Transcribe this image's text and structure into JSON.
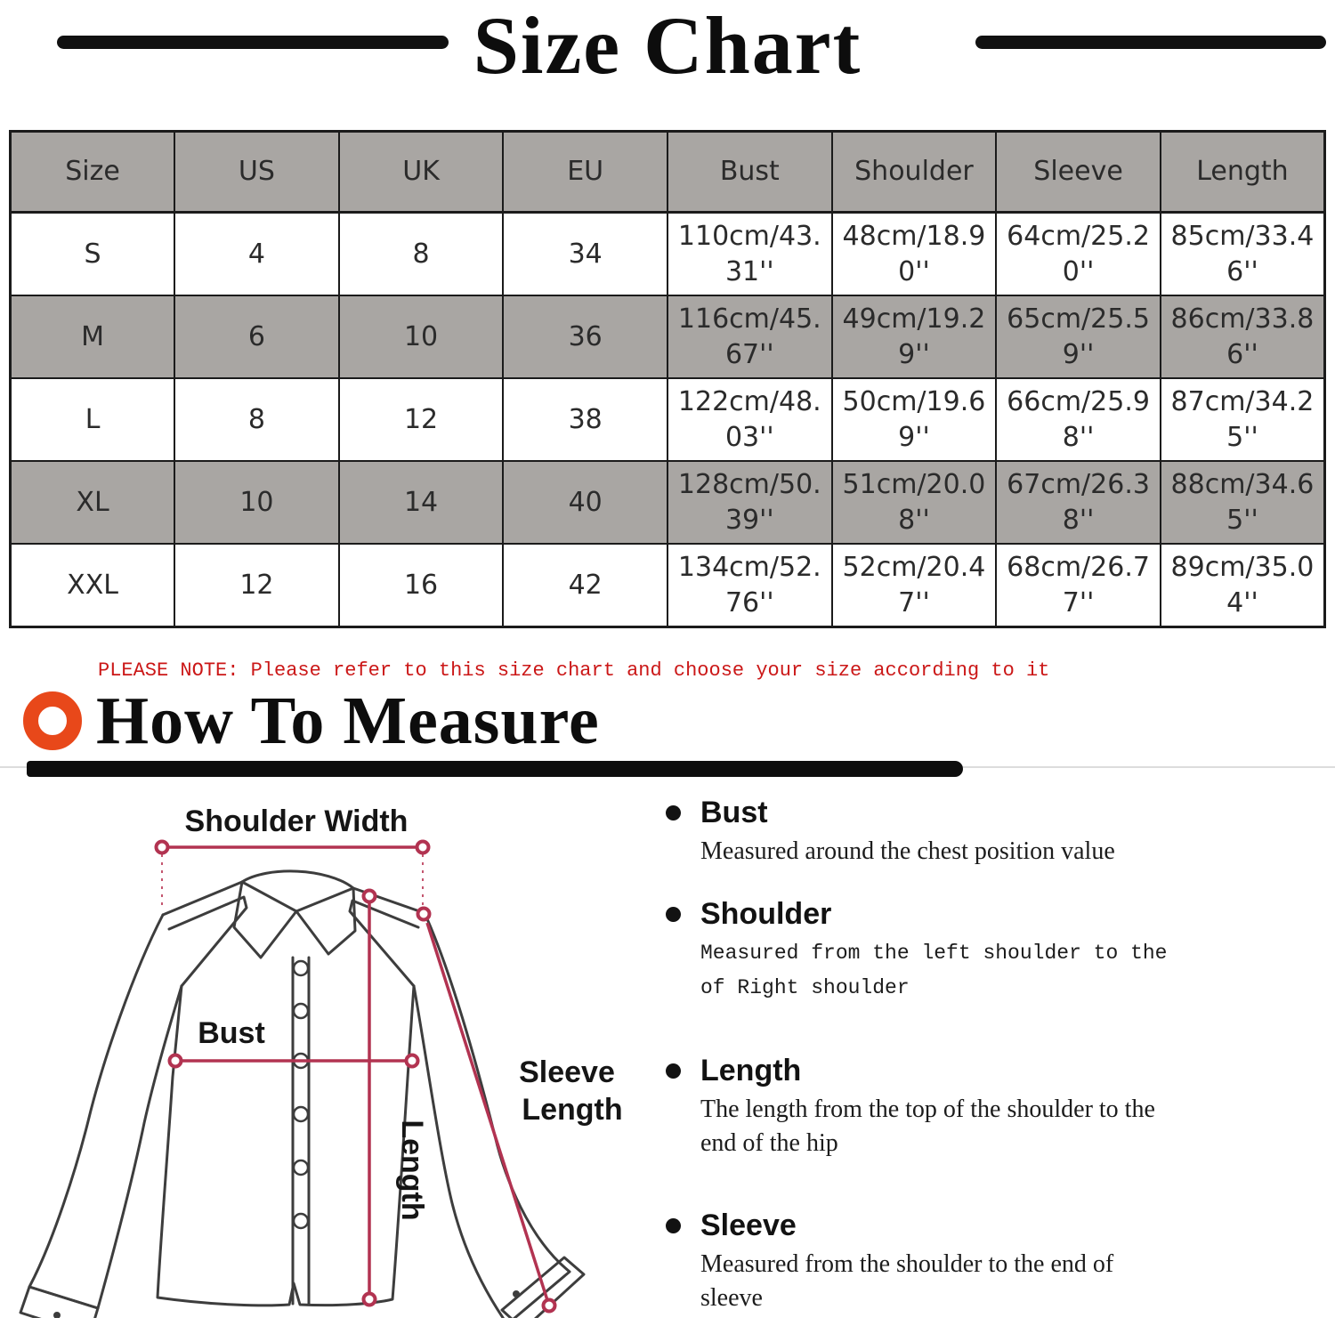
{
  "title": "Size Chart",
  "size_table": {
    "headers": [
      "Size",
      "US",
      "UK",
      "EU",
      "Bust",
      "Shoulder",
      "Sleeve",
      "Length"
    ],
    "rows": [
      {
        "cells": [
          "S",
          "4",
          "8",
          "34",
          "110cm/43.31''",
          "48cm/18.90''",
          "64cm/25.20''",
          "85cm/33.46''"
        ]
      },
      {
        "cells": [
          "M",
          "6",
          "10",
          "36",
          "116cm/45.67''",
          "49cm/19.29''",
          "65cm/25.59''",
          "86cm/33.86''"
        ]
      },
      {
        "cells": [
          "L",
          "8",
          "12",
          "38",
          "122cm/48.03''",
          "50cm/19.69''",
          "66cm/25.98''",
          "87cm/34.25''"
        ]
      },
      {
        "cells": [
          "XL",
          "10",
          "14",
          "40",
          "128cm/50.39''",
          "51cm/20.08''",
          "67cm/26.38''",
          "88cm/34.65''"
        ]
      },
      {
        "cells": [
          "XXL",
          "12",
          "16",
          "42",
          "134cm/52.76''",
          "52cm/20.47''",
          "68cm/26.77''",
          "89cm/35.04''"
        ]
      }
    ]
  },
  "note": "PLEASE NOTE: Please refer to this size chart and choose your size according to it",
  "how_to_measure": {
    "heading": "How To Measure",
    "items": [
      {
        "title": "Bust",
        "desc": "Measured around the chest position value"
      },
      {
        "title": "Shoulder",
        "desc": "Measured from the left shoulder to the of Right shoulder"
      },
      {
        "title": "Length",
        "desc": "The length from the top of the shoulder to the end of the hip"
      },
      {
        "title": "Sleeve",
        "desc": "Measured from the shoulder to the end of sleeve"
      }
    ]
  },
  "diagram": {
    "labels": {
      "shoulder_width": "Shoulder Width",
      "bust": "Bust",
      "length": "Length",
      "sleeve_length": [
        "Sleeve",
        "Length"
      ]
    }
  },
  "colors": {
    "note_red": "#cb1717",
    "ring_orange": "#e8481a",
    "measure_line_red": "#b23351",
    "table_shade_gray": "#a9a6a3"
  }
}
